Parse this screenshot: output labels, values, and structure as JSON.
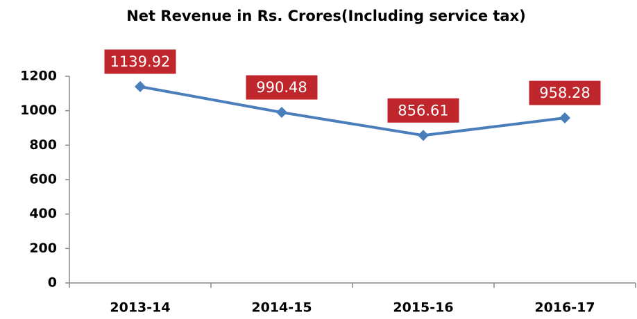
{
  "chart_data": {
    "type": "line",
    "title": "Net Revenue in Rs. Crores(Including service tax)",
    "categories": [
      "2013-14",
      "2014-15",
      "2015-16",
      "2016-17"
    ],
    "values": [
      1139.92,
      990.48,
      856.61,
      958.28
    ],
    "color": "#4a7ebb",
    "label_color": "#c0272d",
    "ylim": [
      0,
      1200
    ],
    "yticks": [
      0,
      200,
      400,
      600,
      800,
      1000,
      1200
    ],
    "grid": false
  }
}
